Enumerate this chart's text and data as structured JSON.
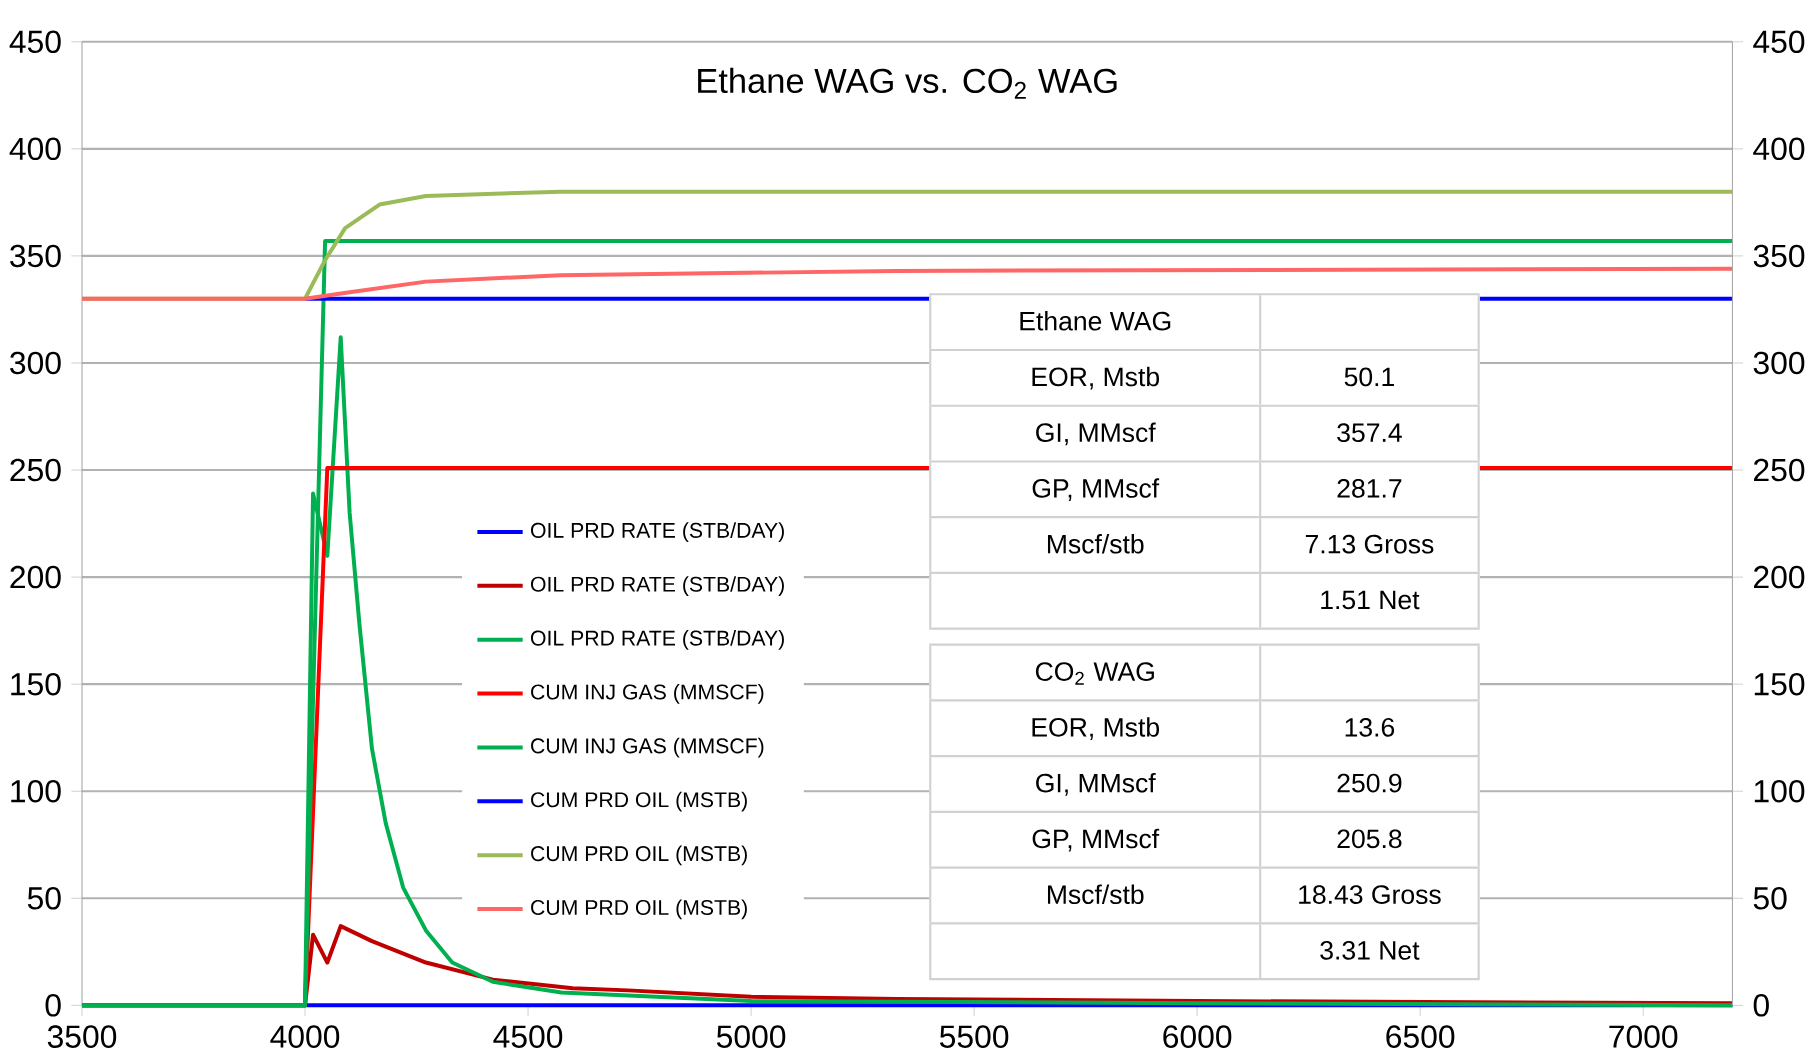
{
  "chart_data": {
    "type": "line",
    "title": "Ethane WAG vs. CO$_{2}$ WAG",
    "xlim": [
      3500,
      7200
    ],
    "xticks": [
      3500,
      4000,
      4500,
      5000,
      5500,
      6000,
      6500,
      7000
    ],
    "ylim": [
      0,
      450
    ],
    "yticks": [
      0,
      50,
      100,
      150,
      200,
      250,
      300,
      350,
      400,
      450
    ],
    "y2lim": [
      0,
      450
    ],
    "y2ticks": [
      0,
      50,
      100,
      150,
      200,
      250,
      300,
      350,
      400,
      450
    ],
    "grid": "y",
    "legend": "bottom left",
    "marker": "none",
    "line_style": "solid",
    "series": [
      {
        "name": "OIL PRD RATE (STB/DAY)",
        "color": "#0000ff",
        "x": [
          3500,
          7200
        ],
        "values": [
          0,
          0
        ]
      },
      {
        "name": "OIL PRD RATE (STB/DAY)",
        "color": "#c00000",
        "x": [
          3500,
          4000,
          4018,
          4050,
          4080,
          4150,
          4271,
          4421,
          4600,
          4724,
          5000,
          5326,
          6000,
          7200
        ],
        "values": [
          0,
          0,
          33,
          20,
          37,
          30,
          20,
          12,
          8,
          7,
          4,
          3,
          2,
          1
        ]
      },
      {
        "name": "OIL PRD RATE (STB/DAY)",
        "color": "#00b050",
        "x": [
          3500,
          4000,
          4018,
          4050,
          4080,
          4100,
          4122,
          4150,
          4181,
          4220,
          4271,
          4330,
          4421,
          4575,
          5000,
          6000,
          7200
        ],
        "values": [
          0,
          0,
          239,
          210,
          312,
          230,
          178,
          120,
          85,
          55,
          35,
          20,
          11,
          6,
          2,
          1,
          0
        ]
      },
      {
        "name": "CUM INJ GAS (MMSCF)",
        "color": "#ff0000",
        "x": [
          3500,
          4000,
          4050,
          7200
        ],
        "values": [
          0,
          0,
          251,
          251
        ]
      },
      {
        "name": "CUM INJ GAS (MMSCF)",
        "color": "#00b050",
        "x": [
          3500,
          4000,
          4045,
          7200
        ],
        "values": [
          0,
          0,
          357,
          357
        ]
      },
      {
        "name": "CUM PRD OIL (MSTB)",
        "color": "#0000ff",
        "x": [
          4000,
          7200
        ],
        "values": [
          330,
          330
        ]
      },
      {
        "name": "CUM PRD OIL (MSTB)",
        "color": "#9bbb59",
        "x": [
          3500,
          4000,
          4045,
          4090,
          4167,
          4271,
          4572,
          5000,
          7200
        ],
        "values": [
          330,
          330,
          348,
          363,
          374,
          378,
          380,
          380,
          380
        ]
      },
      {
        "name": "CUM PRD OIL (MSTB)",
        "color": "#ff6666",
        "x": [
          3500,
          4000,
          4100,
          4271,
          4572,
          5326,
          7200
        ],
        "values": [
          330,
          330,
          333,
          338,
          341,
          343,
          344
        ]
      }
    ],
    "annotations": [
      "Ethane WAG",
      "EOR, Mstb",
      "50.1",
      "GI, MMscf",
      "357.4",
      "GP, MMscf",
      "281.7",
      "Mscf/stb",
      "7.13 Gross",
      "1.51 Net",
      "CO$_{2}$ WAG",
      "EOR, Mstb",
      "13.6",
      "GI, MMscf",
      "250.9",
      "GP, MMscf",
      "205.8",
      "Mscf/stb",
      "18.43 Gross",
      "3.31 Net"
    ]
  }
}
